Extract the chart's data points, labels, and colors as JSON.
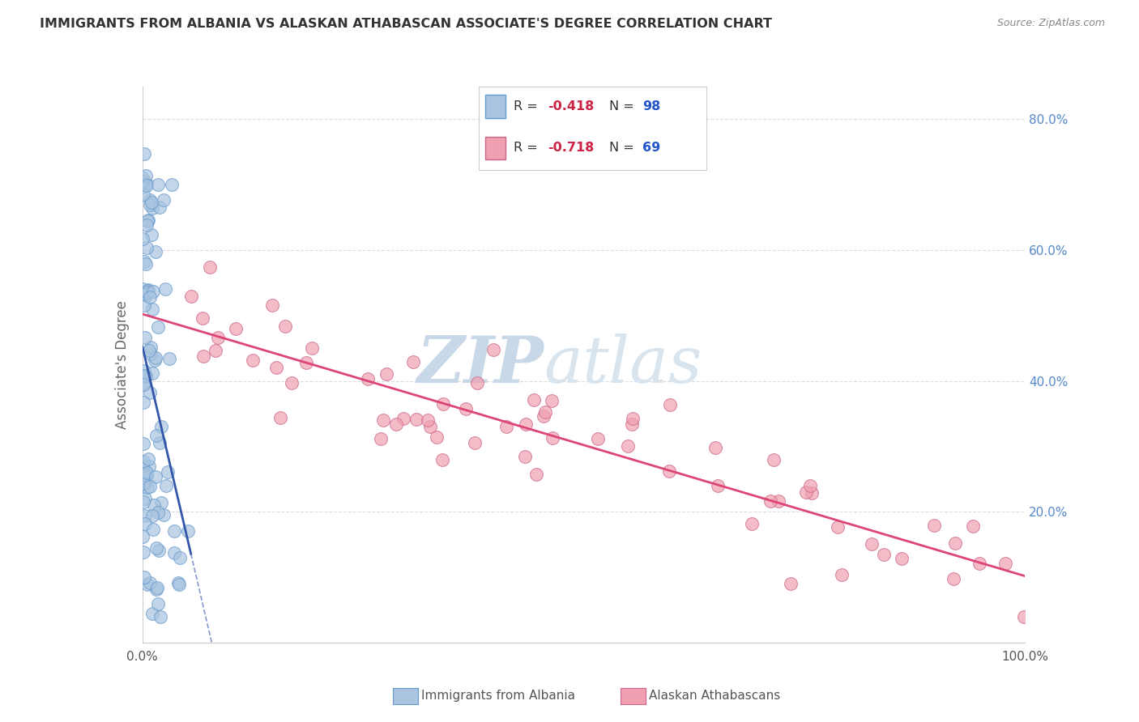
{
  "title": "IMMIGRANTS FROM ALBANIA VS ALASKAN ATHABASCAN ASSOCIATE'S DEGREE CORRELATION CHART",
  "source": "Source: ZipAtlas.com",
  "ylabel": "Associate's Degree",
  "blue_R": "-0.418",
  "blue_N": 98,
  "pink_R": "-0.718",
  "pink_N": 69,
  "blue_color": "#a8c4e0",
  "blue_edge": "#6699cc",
  "blue_line_color": "#3355aa",
  "pink_color": "#f0a0b0",
  "pink_edge": "#cc6688",
  "pink_line_color": "#dd4477",
  "watermark_zip": "ZIP",
  "watermark_atlas": "atlas",
  "watermark_color": "#c8d8e8",
  "grid_color": "#dddddd",
  "title_color": "#333333",
  "right_axis_tick_color": "#5588cc",
  "blue_seed": 42,
  "pink_seed": 77,
  "legend_label1": "Immigrants from Albania",
  "legend_label2": "Alaskan Athabascans"
}
